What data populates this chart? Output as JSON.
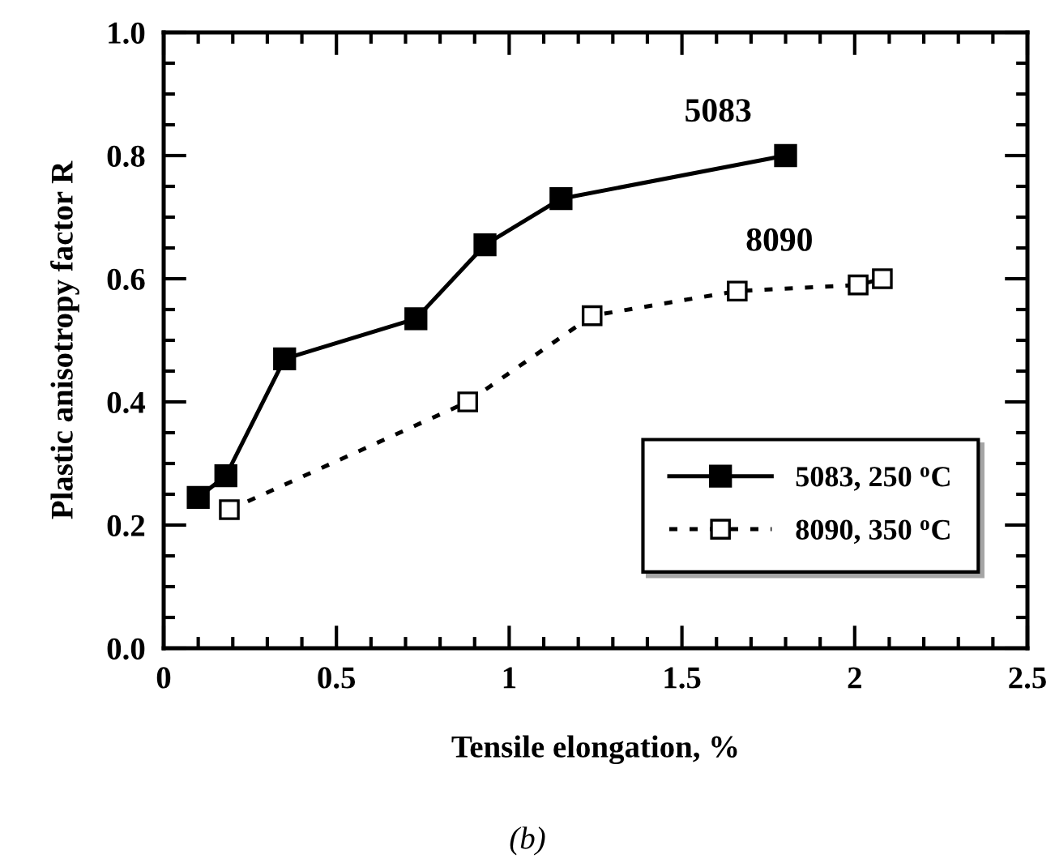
{
  "chart_data": {
    "type": "line",
    "xlabel": "Tensile elongation, %",
    "ylabel": "Plastic anisotropy factor R",
    "xlim": [
      0,
      2.5
    ],
    "ylim": [
      0,
      1.0
    ],
    "xticks": [
      0,
      0.5,
      1,
      1.5,
      2,
      2.5
    ],
    "yticks": [
      {
        "value": 0,
        "label": "0.0"
      },
      0.2,
      0.4,
      0.6,
      0.8,
      {
        "value": 1,
        "label": "1.0"
      }
    ],
    "grid": false,
    "legend": "bottom right",
    "marker": "square",
    "series": [
      {
        "name": "5083, 250 $^{o}$C",
        "color": "#000000",
        "line_style": "solid",
        "x": [
          0.1,
          0.18,
          0.35,
          0.73,
          0.93,
          1.15,
          1.8
        ],
        "values": [
          0.245,
          0.28,
          0.47,
          0.535,
          0.655,
          0.73,
          0.8
        ]
      },
      {
        "name": "8090, 350 $^{o}$C",
        "color": "#000000",
        "line_style": "dotted",
        "x": [
          0.19,
          0.88,
          1.24,
          1.66,
          2.01,
          2.08
        ],
        "values": [
          0.225,
          0.4,
          0.54,
          0.58,
          0.59,
          0.6
        ]
      }
    ],
    "annotations": [
      {
        "text": "5083",
        "x": 1.8,
        "y": 0.8
      },
      {
        "text": "8090",
        "x": 2.01,
        "y": 0.59
      },
      "(b)"
    ]
  }
}
